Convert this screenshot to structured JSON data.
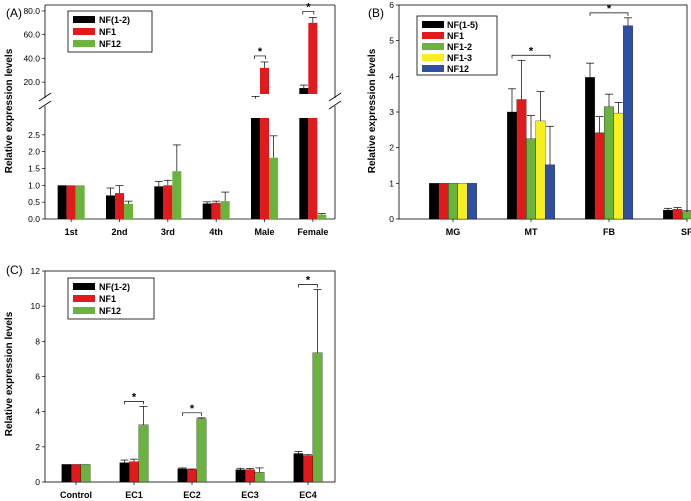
{
  "colors": {
    "black": "#000000",
    "red": "#e31a1c",
    "green": "#6ab43e",
    "yellow": "#f7ef22",
    "blue": "#2f4fa2"
  },
  "chart_data": [
    {
      "id": "A",
      "panel_label": "(A)",
      "type": "bar",
      "ylabel": "Relative expression levels",
      "categories": [
        "1st",
        "2nd",
        "3rd",
        "4th",
        "Male",
        "Female"
      ],
      "axis_break": true,
      "ylim_lower": [
        0,
        3.0
      ],
      "yticks_lower": [
        "0.0",
        "0.5",
        "1.0",
        "1.5",
        "2.0",
        "2.5"
      ],
      "ylim_upper": [
        10,
        85
      ],
      "yticks_upper": [
        "20.0",
        "40.0",
        "60.0",
        "80.0"
      ],
      "series": [
        {
          "name": "NF(1-2)",
          "color": "#000000",
          "values": [
            1.0,
            0.7,
            0.97,
            0.46,
            6.0,
            15.0
          ],
          "errors": [
            0,
            0.22,
            0.15,
            0.05,
            2.0,
            2.5
          ]
        },
        {
          "name": "NF1",
          "color": "#e31a1c",
          "values": [
            1.0,
            0.77,
            1.0,
            0.48,
            32.0,
            70.0
          ],
          "errors": [
            0,
            0.22,
            0.15,
            0.05,
            5.0,
            4.5
          ]
        },
        {
          "name": "NF12",
          "color": "#6ab43e",
          "values": [
            1.0,
            0.45,
            1.42,
            0.53,
            1.82,
            0.13
          ],
          "errors": [
            0,
            0.08,
            0.78,
            0.27,
            0.65,
            0.03
          ]
        }
      ],
      "significance": [
        {
          "category": "Male",
          "label": "*"
        },
        {
          "category": "Female",
          "label": "*"
        }
      ]
    },
    {
      "id": "B",
      "panel_label": "(B)",
      "type": "bar",
      "ylabel": "Relative expression levels",
      "categories": [
        "MG",
        "MT",
        "FB",
        "SP"
      ],
      "ylim": [
        0,
        6
      ],
      "yticks": [
        "0",
        "1",
        "2",
        "3",
        "4",
        "5",
        "6"
      ],
      "series": [
        {
          "name": "NF(1-5)",
          "color": "#000000",
          "values": [
            1.0,
            3.0,
            3.97,
            0.25
          ],
          "errors": [
            0,
            0.65,
            0.4,
            0.05
          ]
        },
        {
          "name": "NF1",
          "color": "#e31a1c",
          "values": [
            1.0,
            3.35,
            2.42,
            0.27
          ],
          "errors": [
            0,
            1.1,
            0.45,
            0.05
          ]
        },
        {
          "name": "NF1-2",
          "color": "#6ab43e",
          "values": [
            1.0,
            2.25,
            3.15,
            0.2
          ],
          "errors": [
            0,
            0.65,
            0.35,
            0.03
          ]
        },
        {
          "name": "NF1-3",
          "color": "#f7ef22",
          "values": [
            1.0,
            2.75,
            2.97,
            0.2
          ],
          "errors": [
            0,
            0.82,
            0.3,
            0.03
          ]
        },
        {
          "name": "NF12",
          "color": "#2f4fa2",
          "values": [
            1.0,
            1.52,
            5.42,
            0
          ],
          "errors": [
            0,
            1.08,
            0.22,
            0
          ]
        }
      ],
      "significance": [
        {
          "category": "MT",
          "label": "*"
        },
        {
          "category": "FB",
          "label": "*"
        }
      ]
    },
    {
      "id": "C",
      "panel_label": "(C)",
      "type": "bar",
      "ylabel": "Relative expression levels",
      "categories": [
        "Control",
        "EC1",
        "EC2",
        "EC3",
        "EC4"
      ],
      "ylim": [
        0,
        12
      ],
      "yticks": [
        "0",
        "2",
        "4",
        "6",
        "8",
        "10",
        "12"
      ],
      "series": [
        {
          "name": "NF(1-2)",
          "color": "#000000",
          "values": [
            1.0,
            1.1,
            0.75,
            0.7,
            1.62
          ],
          "errors": [
            0,
            0.15,
            0.05,
            0.08,
            0.12
          ]
        },
        {
          "name": "NF1",
          "color": "#e31a1c",
          "values": [
            1.0,
            1.15,
            0.7,
            0.7,
            1.5
          ],
          "errors": [
            0,
            0.15,
            0.04,
            0.07,
            0.05
          ]
        },
        {
          "name": "NF12",
          "color": "#6ab43e",
          "values": [
            1.0,
            3.25,
            3.6,
            0.55,
            7.35
          ],
          "errors": [
            0,
            1.05,
            0.05,
            0.25,
            3.6
          ]
        }
      ],
      "significance": [
        {
          "category": "EC1",
          "label": "*"
        },
        {
          "category": "EC2",
          "label": "*"
        },
        {
          "category": "EC4",
          "label": "*"
        }
      ]
    }
  ]
}
